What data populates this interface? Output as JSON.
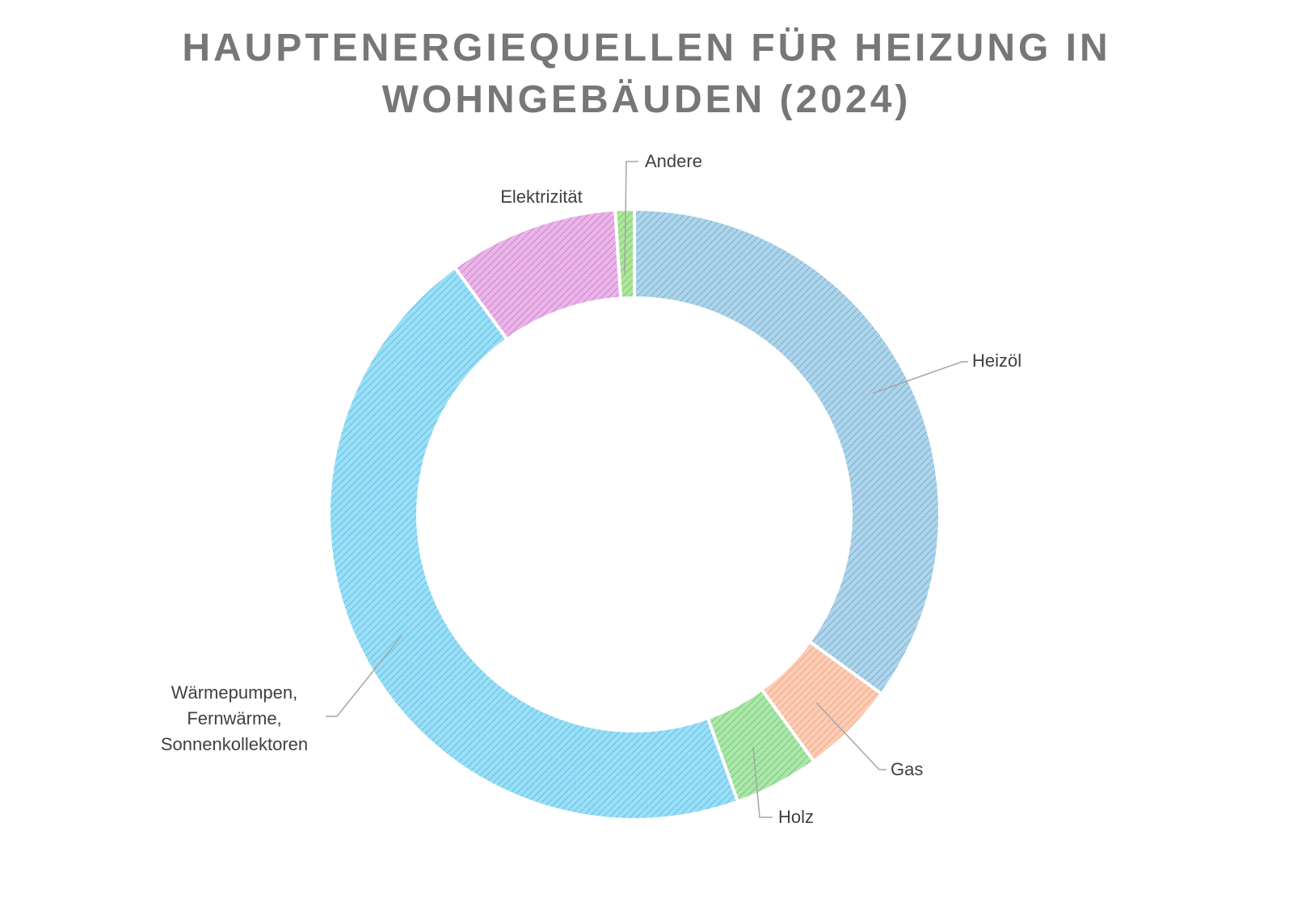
{
  "chart_data": {
    "type": "donut",
    "title": "HAUPTENERGIEQUELLEN FÜR HEIZUNG IN WOHNGEBÄUDEN (2024)",
    "categories": [
      "Heizöl",
      "Gas",
      "Holz",
      "Wärmepumpen, Fernwärme, Sonnenkollektoren",
      "Elektrizität",
      "Andere"
    ],
    "values": [
      35,
      5,
      4.5,
      45.5,
      9,
      1
    ],
    "colors": [
      "#6fb0d6",
      "#f5a37c",
      "#6bcf6a",
      "#4fc3ec",
      "#d47bd3",
      "#6fcf55"
    ]
  }
}
